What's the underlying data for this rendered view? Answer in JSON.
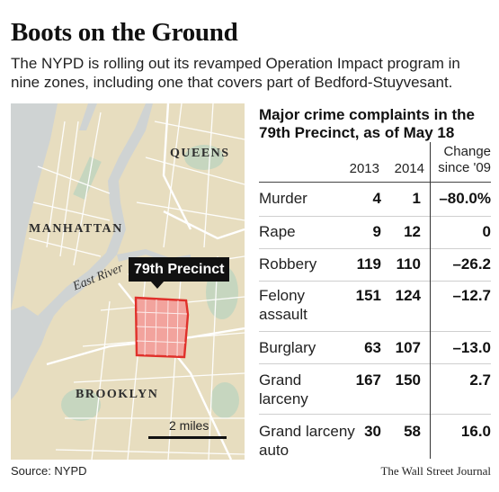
{
  "header": {
    "title": "Boots on the Ground",
    "dek": "The NYPD is rolling out its revamped Operation Impact program in nine zones, including one that covers part of Bedford-Stuyvesant."
  },
  "map": {
    "labels": {
      "queens": "QUEENS",
      "manhattan": "MANHATTAN",
      "brooklyn": "BROOKLYN",
      "river": "East River"
    },
    "highlight": "79th Precinct",
    "scale": "2 miles",
    "colors": {
      "land": "#e7ddbf",
      "water": "#cfd3d3",
      "park": "#c6d6bf",
      "streets": "#ffffff",
      "precinct_fill": "#f2a39d",
      "precinct_stroke": "#e0302a"
    }
  },
  "table": {
    "title": "Major crime complaints in the 79th Precinct, as of May 18",
    "columns": {
      "year1": "2013",
      "year2": "2014",
      "change": "Change since '09"
    },
    "rows": [
      {
        "label": "Murder",
        "y2013": "4",
        "y2014": "1",
        "change": "–80.0%"
      },
      {
        "label": "Rape",
        "y2013": "9",
        "y2014": "12",
        "change": "0"
      },
      {
        "label": "Robbery",
        "y2013": "119",
        "y2014": "110",
        "change": "–26.2"
      },
      {
        "label": "Felony assault",
        "y2013": "151",
        "y2014": "124",
        "change": "–12.7"
      },
      {
        "label": "Burglary",
        "y2013": "63",
        "y2014": "107",
        "change": "–13.0"
      },
      {
        "label": "Grand larceny",
        "y2013": "167",
        "y2014": "150",
        "change": "2.7"
      },
      {
        "label": "Grand larceny auto",
        "y2013": "30",
        "y2014": "58",
        "change": "16.0"
      }
    ]
  },
  "footer": {
    "source": "Source: NYPD",
    "credit": "The Wall Street Journal"
  }
}
